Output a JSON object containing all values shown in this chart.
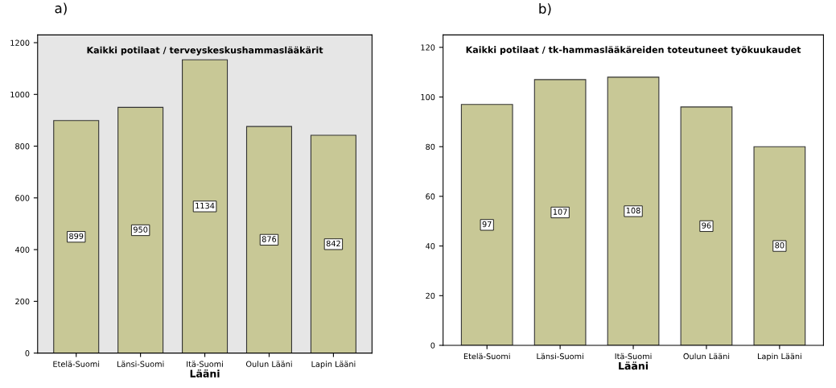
{
  "chart_data": [
    {
      "type": "bar",
      "title": "Kaikki potilaat / terveyskeskushammaslääkärit",
      "annotations": [
        "a)"
      ],
      "xlabel": "Lääni",
      "categories": [
        "Etelä-Suomi",
        "Länsi-Suomi",
        "Itä-Suomi",
        "Oulun Lääni",
        "Lapin Lääni"
      ],
      "values": [
        899,
        950,
        1134,
        876,
        842
      ],
      "color": "#c8c896",
      "data_labels": true,
      "ylim": [
        0,
        1230
      ],
      "yticks": [
        0,
        200,
        400,
        600,
        800,
        1000,
        1200
      ],
      "grid": false,
      "legend": false
    },
    {
      "type": "bar",
      "title": "Kaikki potilaat / tk-hammaslääkäreiden toteutuneet työkuukaudet",
      "annotations": [
        "b)"
      ],
      "xlabel": "Lääni",
      "categories": [
        "Etelä-Suomi",
        "Länsi-Suomi",
        "Itä-Suomi",
        "Oulun Lääni",
        "Lapin Lääni"
      ],
      "values": [
        97,
        107,
        108,
        96,
        80
      ],
      "color": "#c8c896",
      "data_labels": true,
      "ylim": [
        0,
        125
      ],
      "yticks": [
        0,
        20,
        40,
        60,
        80,
        100,
        120
      ],
      "grid": false,
      "legend": false
    }
  ]
}
